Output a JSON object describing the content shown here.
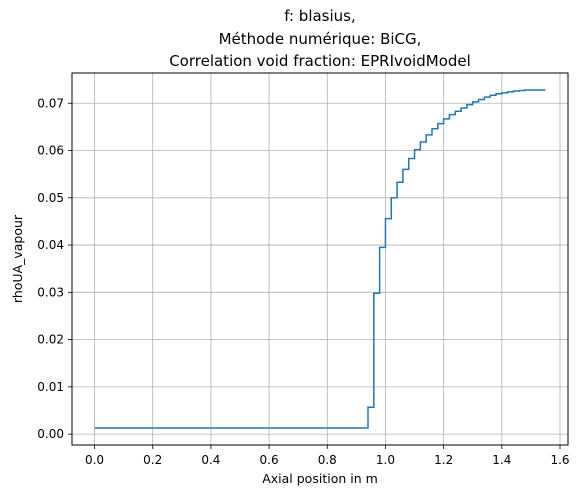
{
  "chart_data": {
    "type": "line",
    "step": true,
    "title_lines": [
      "f: blasius,",
      "Méthode numérique: BiCG,",
      "Correlation void fraction: EPRIvoidModel"
    ],
    "xlabel": "Axial position in m",
    "ylabel": "rhoUA_vapour",
    "xlim": [
      -0.0775,
      1.6275
    ],
    "ylim": [
      -0.0023,
      0.0764
    ],
    "xticks": [
      0.0,
      0.2,
      0.4,
      0.6,
      0.8,
      1.0,
      1.2,
      1.4,
      1.6
    ],
    "xtick_labels": [
      "0.0",
      "0.2",
      "0.4",
      "0.6",
      "0.8",
      "1.0",
      "1.2",
      "1.4",
      "1.6"
    ],
    "yticks": [
      0.0,
      0.01,
      0.02,
      0.03,
      0.04,
      0.05,
      0.06,
      0.07
    ],
    "ytick_labels": [
      "0.00",
      "0.01",
      "0.02",
      "0.03",
      "0.04",
      "0.05",
      "0.06",
      "0.07"
    ],
    "grid": true,
    "line_color": "#1f77b4",
    "series": [
      {
        "x": [
          0.0,
          0.94,
          0.96,
          0.98,
          1.0,
          1.02,
          1.04,
          1.06,
          1.08,
          1.1,
          1.12,
          1.14,
          1.16,
          1.18,
          1.2,
          1.22,
          1.24,
          1.26,
          1.28,
          1.3,
          1.32,
          1.34,
          1.36,
          1.38,
          1.4,
          1.42,
          1.44,
          1.46,
          1.48,
          1.5,
          1.55
        ],
        "y": [
          0.0013,
          0.0057,
          0.0298,
          0.0395,
          0.0456,
          0.05,
          0.0533,
          0.056,
          0.0583,
          0.0602,
          0.0618,
          0.0633,
          0.0646,
          0.0657,
          0.0667,
          0.0676,
          0.0683,
          0.069,
          0.0697,
          0.0703,
          0.0708,
          0.0713,
          0.0717,
          0.072,
          0.0722,
          0.0724,
          0.0726,
          0.0727,
          0.0728,
          0.0728,
          0.0728
        ]
      }
    ]
  }
}
